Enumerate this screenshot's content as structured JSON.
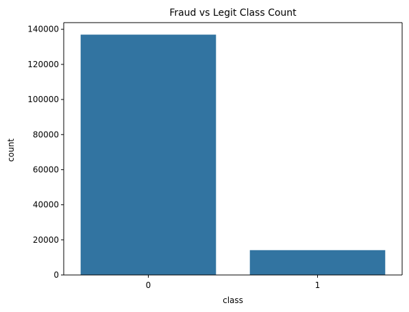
{
  "chart_data": {
    "type": "bar",
    "title": "Fraud vs Legit Class Count",
    "xlabel": "class",
    "ylabel": "count",
    "categories": [
      "0",
      "1"
    ],
    "values": [
      136961,
      14151
    ],
    "ylim": [
      0,
      143800
    ],
    "yticks": [
      0,
      20000,
      40000,
      60000,
      80000,
      100000,
      120000,
      140000
    ],
    "ytick_labels": [
      "0",
      "20000",
      "40000",
      "60000",
      "80000",
      "100000",
      "120000",
      "140000"
    ],
    "grid": false,
    "legend": "none",
    "bar_color": "#3274a1"
  }
}
